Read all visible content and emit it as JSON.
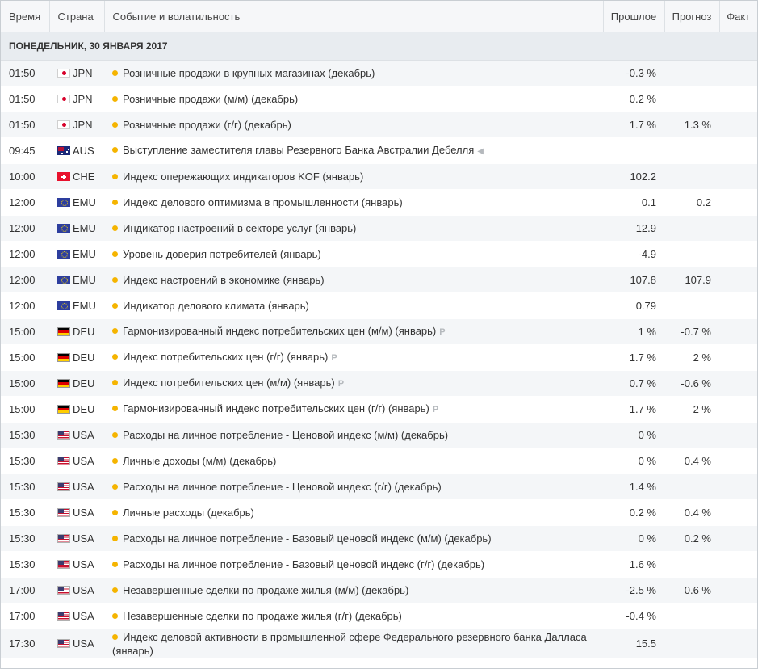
{
  "headers": {
    "time": "Время",
    "country": "Страна",
    "event": "Событие и волатильность",
    "previous": "Прошлое",
    "forecast": "Прогноз",
    "actual": "Факт"
  },
  "day_label": "ПОНЕДЕЛЬНИК, 30 ЯНВАРЯ 2017",
  "colors": {
    "volatility_dot": "#f5b400",
    "row_alt": "#f4f6f8",
    "header_bg": "#f6f7f9",
    "day_bg": "#e8ecf0"
  },
  "events": [
    {
      "time": "01:50",
      "country": "JPN",
      "flag": "flag-jpn",
      "event": "Розничные продажи в крупных магазинах (декабрь)",
      "mark": "",
      "previous": "-0.3 %",
      "forecast": ""
    },
    {
      "time": "01:50",
      "country": "JPN",
      "flag": "flag-jpn",
      "event": "Розничные продажи (м/м) (декабрь)",
      "mark": "",
      "previous": "0.2 %",
      "forecast": ""
    },
    {
      "time": "01:50",
      "country": "JPN",
      "flag": "flag-jpn",
      "event": "Розничные продажи (г/г) (декабрь)",
      "mark": "",
      "previous": "1.7 %",
      "forecast": "1.3 %"
    },
    {
      "time": "09:45",
      "country": "AUS",
      "flag": "flag-aus",
      "event": "Выступление заместителя главы Резервного Банка Австралии Дебелля",
      "mark": "speech-icon",
      "previous": "",
      "forecast": ""
    },
    {
      "time": "10:00",
      "country": "CHE",
      "flag": "flag-che",
      "event": "Индекс опережающих индикаторов KOF (январь)",
      "mark": "",
      "previous": "102.2",
      "forecast": ""
    },
    {
      "time": "12:00",
      "country": "EMU",
      "flag": "flag-emu",
      "event": "Индекс делового оптимизма в промышленности (январь)",
      "mark": "",
      "previous": "0.1",
      "forecast": "0.2"
    },
    {
      "time": "12:00",
      "country": "EMU",
      "flag": "flag-emu",
      "event": "Индикатор настроений в секторе услуг (январь)",
      "mark": "",
      "previous": "12.9",
      "forecast": ""
    },
    {
      "time": "12:00",
      "country": "EMU",
      "flag": "flag-emu",
      "event": "Уровень доверия потребителей (январь)",
      "mark": "",
      "previous": "-4.9",
      "forecast": ""
    },
    {
      "time": "12:00",
      "country": "EMU",
      "flag": "flag-emu",
      "event": "Индекс настроений в экономике (январь)",
      "mark": "",
      "previous": "107.8",
      "forecast": "107.9"
    },
    {
      "time": "12:00",
      "country": "EMU",
      "flag": "flag-emu",
      "event": "Индикатор делового климата (январь)",
      "mark": "",
      "previous": "0.79",
      "forecast": ""
    },
    {
      "time": "15:00",
      "country": "DEU",
      "flag": "flag-deu",
      "event": "Гармонизированный индекс потребительских цен (м/м) (январь)",
      "mark": "P",
      "previous": "1 %",
      "forecast": "-0.7 %"
    },
    {
      "time": "15:00",
      "country": "DEU",
      "flag": "flag-deu",
      "event": "Индекс потребительских цен (г/г) (январь)",
      "mark": "P",
      "previous": "1.7 %",
      "forecast": "2 %"
    },
    {
      "time": "15:00",
      "country": "DEU",
      "flag": "flag-deu",
      "event": "Индекс потребительских цен (м/м) (январь)",
      "mark": "P",
      "previous": "0.7 %",
      "forecast": "-0.6 %"
    },
    {
      "time": "15:00",
      "country": "DEU",
      "flag": "flag-deu",
      "event": "Гармонизированный индекс потребительских цен (г/г) (январь)",
      "mark": "P",
      "previous": "1.7 %",
      "forecast": "2 %"
    },
    {
      "time": "15:30",
      "country": "USA",
      "flag": "flag-usa",
      "event": "Расходы на личное потребление - Ценовой индекс (м/м) (декабрь)",
      "mark": "",
      "previous": "0 %",
      "forecast": ""
    },
    {
      "time": "15:30",
      "country": "USA",
      "flag": "flag-usa",
      "event": "Личные доходы (м/м) (декабрь)",
      "mark": "",
      "previous": "0 %",
      "forecast": "0.4 %"
    },
    {
      "time": "15:30",
      "country": "USA",
      "flag": "flag-usa",
      "event": "Расходы на личное потребление - Ценовой индекс (г/г) (декабрь)",
      "mark": "",
      "previous": "1.4 %",
      "forecast": ""
    },
    {
      "time": "15:30",
      "country": "USA",
      "flag": "flag-usa",
      "event": "Личные расходы (декабрь)",
      "mark": "",
      "previous": "0.2 %",
      "forecast": "0.4 %"
    },
    {
      "time": "15:30",
      "country": "USA",
      "flag": "flag-usa",
      "event": "Расходы на личное потребление - Базовый ценовой индекс (м/м) (декабрь)",
      "mark": "",
      "previous": "0 %",
      "forecast": "0.2 %"
    },
    {
      "time": "15:30",
      "country": "USA",
      "flag": "flag-usa",
      "event": "Расходы на личное потребление - Базовый ценовой индекс (г/г) (декабрь)",
      "mark": "",
      "previous": "1.6 %",
      "forecast": ""
    },
    {
      "time": "17:00",
      "country": "USA",
      "flag": "flag-usa",
      "event": "Незавершенные сделки по продаже жилья (м/м) (декабрь)",
      "mark": "",
      "previous": "-2.5 %",
      "forecast": "0.6 %"
    },
    {
      "time": "17:00",
      "country": "USA",
      "flag": "flag-usa",
      "event": "Незавершенные сделки по продаже жилья (г/г) (декабрь)",
      "mark": "",
      "previous": "-0.4 %",
      "forecast": ""
    },
    {
      "time": "17:30",
      "country": "USA",
      "flag": "flag-usa",
      "event": "Индекс деловой активности в промышленной сфере Федерального резервного банка Далласа (январь)",
      "mark": "",
      "previous": "15.5",
      "forecast": ""
    }
  ]
}
